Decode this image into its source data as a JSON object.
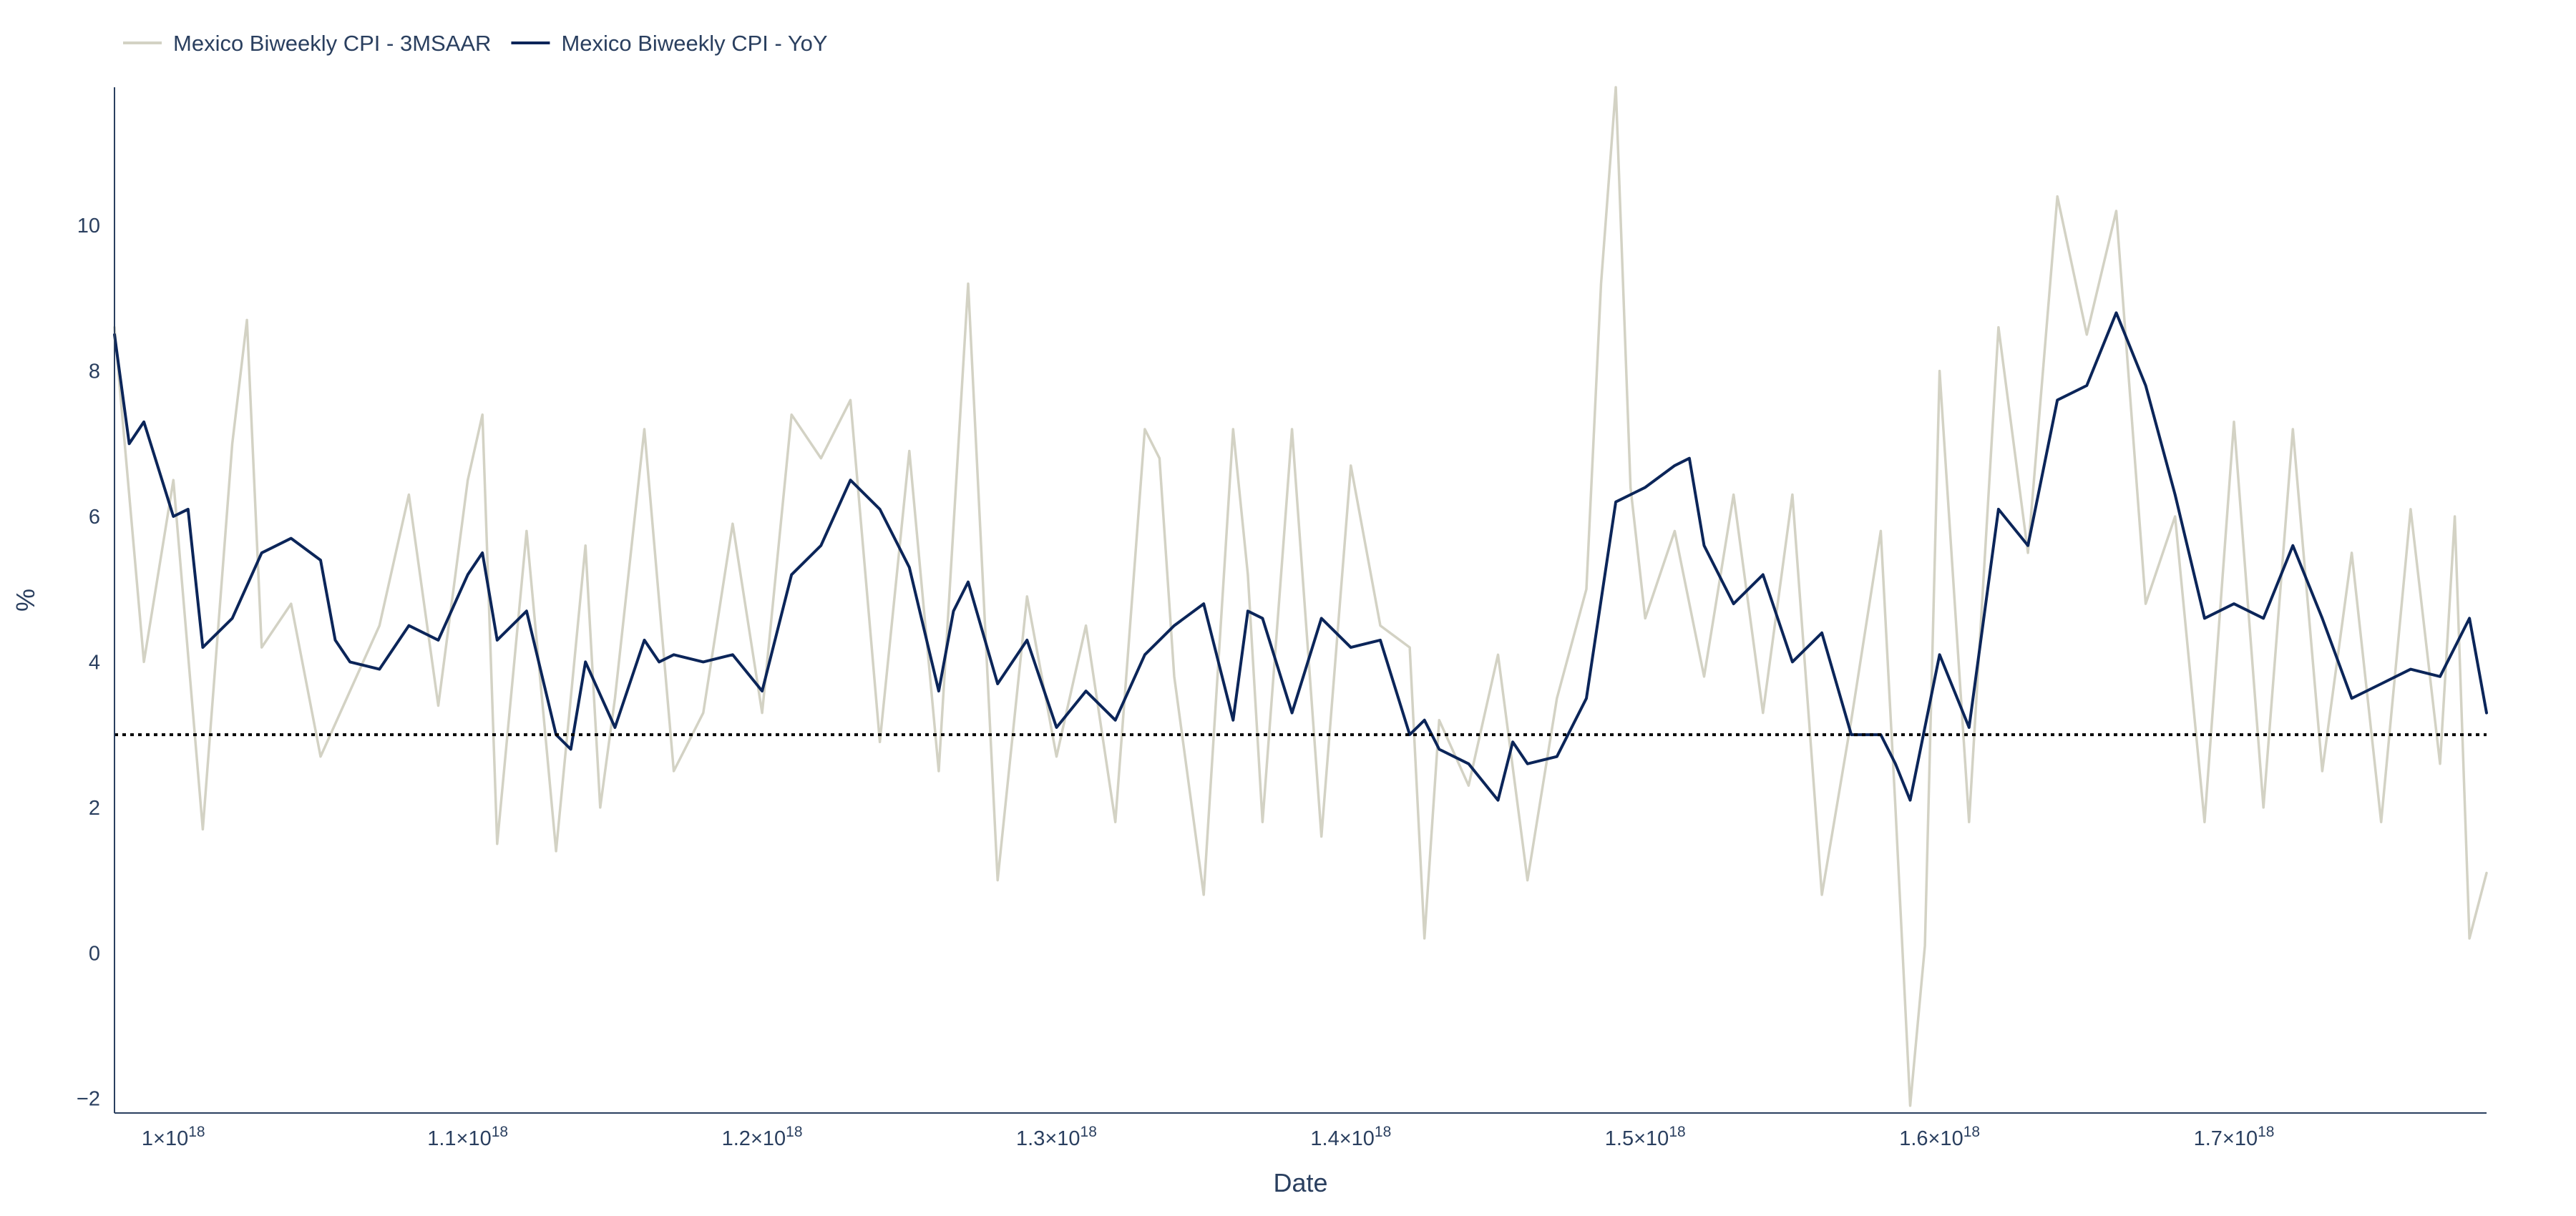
{
  "chart_data": {
    "type": "line",
    "xlabel": "Date",
    "ylabel": "%",
    "xlim": [
      9.8e+17,
      1.7858e+18
    ],
    "ylim": [
      -2.2,
      11.9
    ],
    "x_ticks": [
      {
        "value": 1e+18,
        "mant": "1",
        "exp": "18"
      },
      {
        "value": 1.1e+18,
        "mant": "1.1",
        "exp": "18"
      },
      {
        "value": 1.2e+18,
        "mant": "1.2",
        "exp": "18"
      },
      {
        "value": 1.3e+18,
        "mant": "1.3",
        "exp": "18"
      },
      {
        "value": 1.4e+18,
        "mant": "1.4",
        "exp": "18"
      },
      {
        "value": 1.5e+18,
        "mant": "1.5",
        "exp": "18"
      },
      {
        "value": 1.6e+18,
        "mant": "1.6",
        "exp": "18"
      },
      {
        "value": 1.7e+18,
        "mant": "1.7",
        "exp": "18"
      }
    ],
    "x_tick_times": "×10",
    "y_ticks": [
      {
        "value": -2,
        "label": "−2"
      },
      {
        "value": 0,
        "label": "0"
      },
      {
        "value": 2,
        "label": "2"
      },
      {
        "value": 4,
        "label": "4"
      },
      {
        "value": 6,
        "label": "6"
      },
      {
        "value": 8,
        "label": "8"
      },
      {
        "value": 10,
        "label": "10"
      }
    ],
    "reference_line": {
      "y": 3,
      "style": "dotted",
      "color": "#000000"
    },
    "grid": false,
    "legend_position": "top-left",
    "series": [
      {
        "name": "Mexico Biweekly CPI - 3MSAAR",
        "color": "#d3d2c4",
        "x": [
          9.8e+17,
          9.9e+17,
          1e+18,
          1.01e+18,
          1.02e+18,
          1.025e+18,
          1.03e+18,
          1.04e+18,
          1.05e+18,
          1.06e+18,
          1.07e+18,
          1.08e+18,
          1.09e+18,
          1.1e+18,
          1.105e+18,
          1.11e+18,
          1.12e+18,
          1.13e+18,
          1.14e+18,
          1.145e+18,
          1.15e+18,
          1.16e+18,
          1.17e+18,
          1.18e+18,
          1.19e+18,
          1.2e+18,
          1.21e+18,
          1.22e+18,
          1.23e+18,
          1.24e+18,
          1.25e+18,
          1.26e+18,
          1.27e+18,
          1.28e+18,
          1.29e+18,
          1.3e+18,
          1.31e+18,
          1.32e+18,
          1.33e+18,
          1.335e+18,
          1.34e+18,
          1.35e+18,
          1.36e+18,
          1.365e+18,
          1.37e+18,
          1.38e+18,
          1.39e+18,
          1.4e+18,
          1.41e+18,
          1.42e+18,
          1.425e+18,
          1.43e+18,
          1.44e+18,
          1.45e+18,
          1.46e+18,
          1.47e+18,
          1.48e+18,
          1.485e+18,
          1.49e+18,
          1.495e+18,
          1.5e+18,
          1.51e+18,
          1.52e+18,
          1.53e+18,
          1.54e+18,
          1.55e+18,
          1.56e+18,
          1.57e+18,
          1.58e+18,
          1.585e+18,
          1.59e+18,
          1.595e+18,
          1.6e+18,
          1.61e+18,
          1.62e+18,
          1.63e+18,
          1.64e+18,
          1.65e+18,
          1.66e+18,
          1.67e+18,
          1.68e+18,
          1.69e+18,
          1.7e+18,
          1.71e+18,
          1.72e+18,
          1.73e+18,
          1.74e+18,
          1.75e+18,
          1.76e+18,
          1.77e+18,
          1.775e+18,
          1.78e+18,
          1.7858e+18
        ],
        "values": [
          8.6,
          4.0,
          6.5,
          1.7,
          7.0,
          8.7,
          4.2,
          4.8,
          2.7,
          3.6,
          4.5,
          6.3,
          3.4,
          6.5,
          7.4,
          1.5,
          5.8,
          1.4,
          5.6,
          2.0,
          3.5,
          7.2,
          2.5,
          3.3,
          5.9,
          3.3,
          7.4,
          6.8,
          7.6,
          2.9,
          6.9,
          2.5,
          9.2,
          1.0,
          4.9,
          2.7,
          4.5,
          1.8,
          7.2,
          6.8,
          3.8,
          0.8,
          7.2,
          5.2,
          1.8,
          7.2,
          1.6,
          6.7,
          4.5,
          4.2,
          0.2,
          3.2,
          2.3,
          4.1,
          1.0,
          3.5,
          5.0,
          9.2,
          11.9,
          6.4,
          4.6,
          5.8,
          3.8,
          6.3,
          3.3,
          6.3,
          0.8,
          3.2,
          5.8,
          2.0,
          -2.1,
          0.1,
          8.0,
          1.8,
          8.6,
          5.5,
          10.4,
          8.5,
          10.2,
          4.8,
          6.0,
          1.8,
          7.3,
          2.0,
          7.2,
          2.5,
          5.5,
          1.8,
          6.1,
          2.6,
          6.0,
          0.2,
          1.1
        ]
      },
      {
        "name": "Mexico Biweekly CPI - YoY",
        "color": "#0b2559",
        "x": [
          9.8e+17,
          9.85e+17,
          9.9e+17,
          1e+18,
          1.005e+18,
          1.01e+18,
          1.02e+18,
          1.03e+18,
          1.04e+18,
          1.05e+18,
          1.055e+18,
          1.06e+18,
          1.07e+18,
          1.08e+18,
          1.09e+18,
          1.1e+18,
          1.105e+18,
          1.11e+18,
          1.12e+18,
          1.13e+18,
          1.135e+18,
          1.14e+18,
          1.15e+18,
          1.16e+18,
          1.165e+18,
          1.17e+18,
          1.18e+18,
          1.19e+18,
          1.2e+18,
          1.21e+18,
          1.22e+18,
          1.23e+18,
          1.24e+18,
          1.25e+18,
          1.26e+18,
          1.265e+18,
          1.27e+18,
          1.28e+18,
          1.29e+18,
          1.3e+18,
          1.31e+18,
          1.32e+18,
          1.33e+18,
          1.34e+18,
          1.35e+18,
          1.36e+18,
          1.365e+18,
          1.37e+18,
          1.38e+18,
          1.39e+18,
          1.4e+18,
          1.41e+18,
          1.42e+18,
          1.425e+18,
          1.43e+18,
          1.44e+18,
          1.45e+18,
          1.455e+18,
          1.46e+18,
          1.47e+18,
          1.48e+18,
          1.49e+18,
          1.5e+18,
          1.51e+18,
          1.515e+18,
          1.52e+18,
          1.53e+18,
          1.54e+18,
          1.55e+18,
          1.56e+18,
          1.57e+18,
          1.58e+18,
          1.585e+18,
          1.59e+18,
          1.6e+18,
          1.61e+18,
          1.62e+18,
          1.63e+18,
          1.64e+18,
          1.65e+18,
          1.66e+18,
          1.67e+18,
          1.68e+18,
          1.69e+18,
          1.7e+18,
          1.71e+18,
          1.72e+18,
          1.73e+18,
          1.74e+18,
          1.75e+18,
          1.76e+18,
          1.77e+18,
          1.78e+18,
          1.7858e+18
        ],
        "values": [
          8.5,
          7.0,
          7.3,
          6.0,
          6.1,
          4.2,
          4.6,
          5.5,
          5.7,
          5.4,
          4.3,
          4.0,
          3.9,
          4.5,
          4.3,
          5.2,
          5.5,
          4.3,
          4.7,
          3.0,
          2.8,
          4.0,
          3.1,
          4.3,
          4.0,
          4.1,
          4.0,
          4.1,
          3.6,
          5.2,
          5.6,
          6.5,
          6.1,
          5.3,
          3.6,
          4.7,
          5.1,
          3.7,
          4.3,
          3.1,
          3.6,
          3.2,
          4.1,
          4.5,
          4.8,
          3.2,
          4.7,
          4.6,
          3.3,
          4.6,
          4.2,
          4.3,
          3.0,
          3.2,
          2.8,
          2.6,
          2.1,
          2.9,
          2.6,
          2.7,
          3.5,
          6.2,
          6.4,
          6.7,
          6.8,
          5.6,
          4.8,
          5.2,
          4.0,
          4.4,
          3.0,
          3.0,
          2.6,
          2.1,
          4.1,
          3.1,
          6.1,
          5.6,
          7.6,
          7.8,
          8.8,
          7.8,
          6.3,
          4.6,
          4.8,
          4.6,
          5.6,
          4.6,
          3.5,
          3.7,
          3.9,
          3.8,
          4.6,
          3.3
        ]
      }
    ]
  }
}
